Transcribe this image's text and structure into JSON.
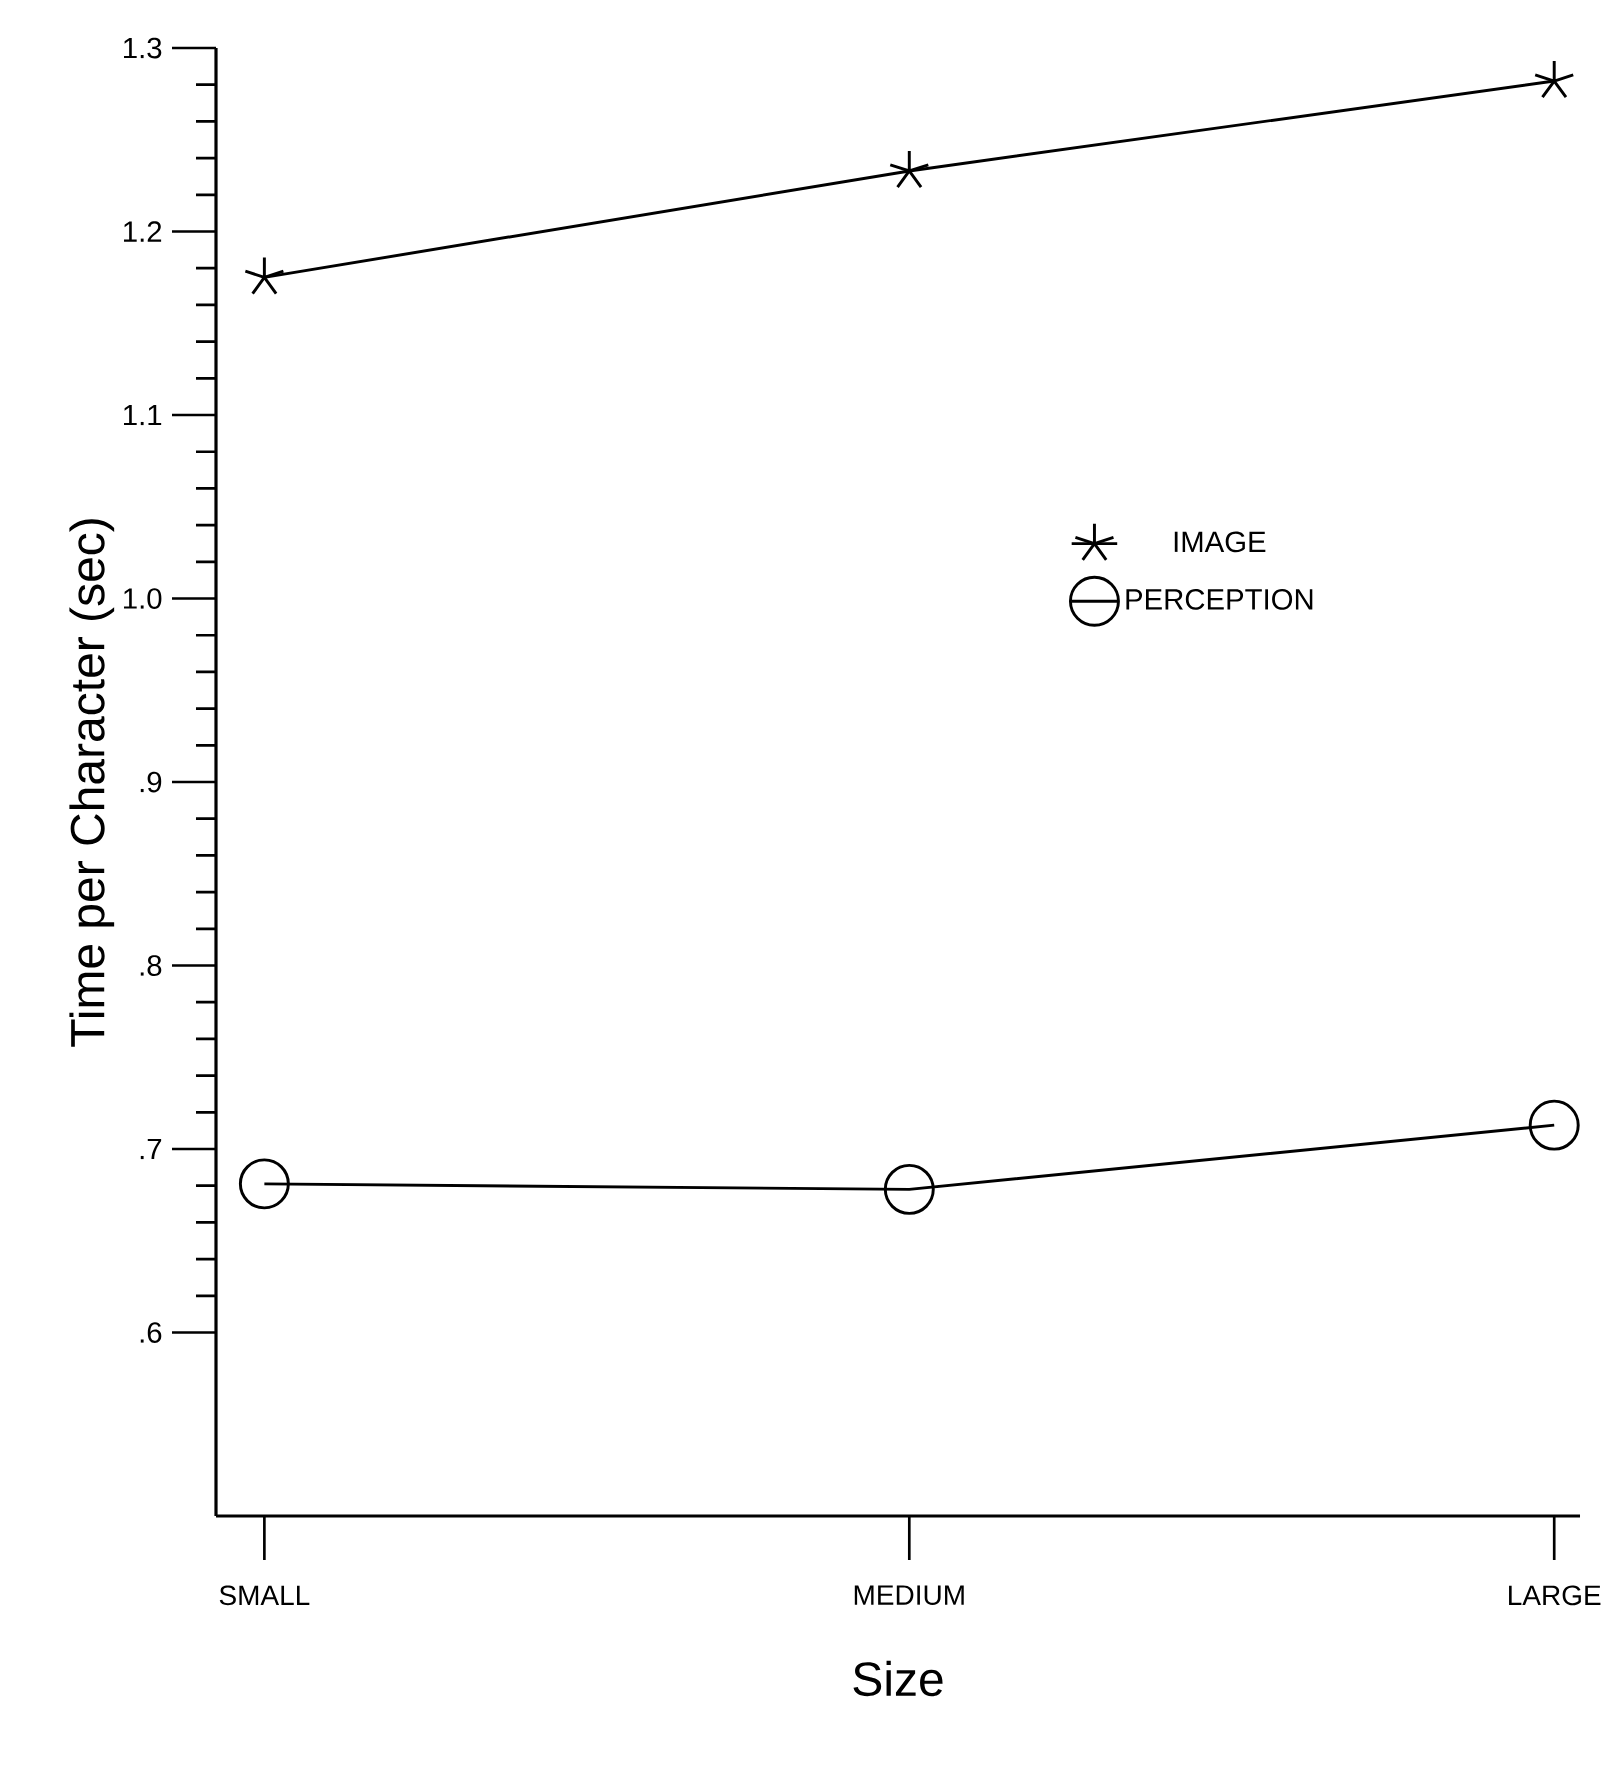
{
  "chart_data": {
    "type": "line",
    "xlabel": "Size",
    "ylabel": "Time per Character (sec)",
    "categories": [
      "SMALL",
      "MEDIUM",
      "LARGE"
    ],
    "series": [
      {
        "name": "IMAGE",
        "color": "#000000",
        "marker": "cross",
        "values": [
          1.175,
          1.233,
          1.282
        ]
      },
      {
        "name": "PERCEPTION",
        "color": "#000000",
        "marker": "circle",
        "values": [
          0.681,
          0.678,
          0.713
        ]
      }
    ],
    "ylim": [
      0.5,
      1.3
    ],
    "yticks": [
      {
        "value": 0.6,
        "label": ".6"
      },
      {
        "value": 0.7,
        "label": ".7"
      },
      {
        "value": 0.8,
        "label": ".8"
      },
      {
        "value": 0.9,
        "label": ".9"
      },
      {
        "value": 1.0,
        "label": "1.0"
      },
      1.1,
      1.2,
      1.3
    ],
    "legend": "right",
    "grid": false,
    "line_style": "solid"
  }
}
